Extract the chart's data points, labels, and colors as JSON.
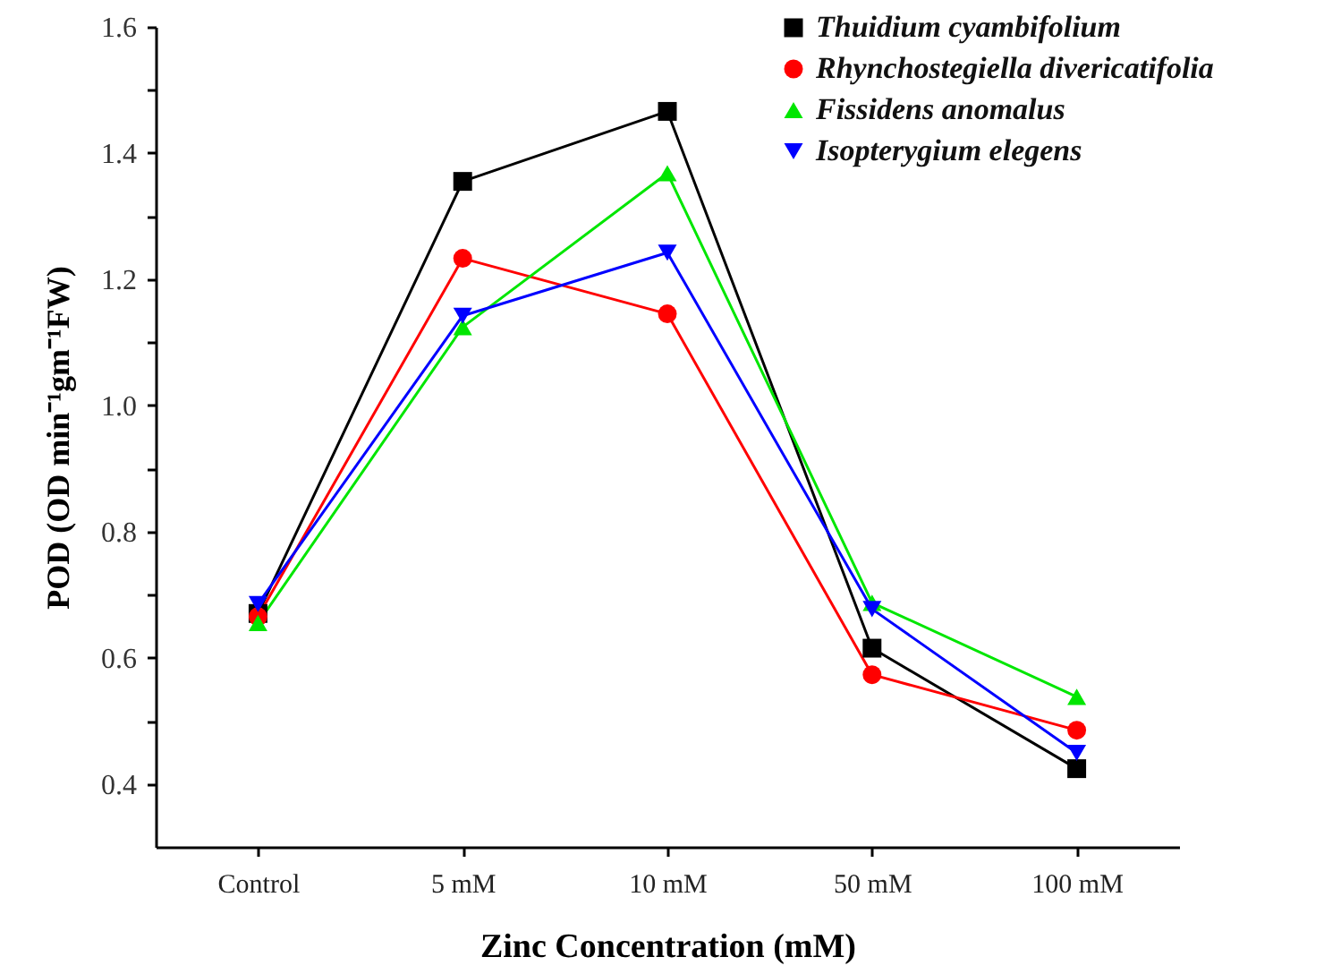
{
  "chart_data": {
    "type": "line",
    "xlabel": "Zinc Concentration (mM)",
    "ylabel": "POD (OD min⁻¹gm⁻¹FW)",
    "categories": [
      "Control",
      "5 mM",
      "10 mM",
      "50 mM",
      "100 mM"
    ],
    "series": [
      {
        "name": "Thuidium cyambifolium",
        "color": "#000000",
        "marker": "square",
        "values": [
          0.67,
          1.355,
          1.466,
          0.615,
          0.424
        ]
      },
      {
        "name": "Rhynchostegiella divericatifolia",
        "color": "#ff0000",
        "marker": "circle",
        "values": [
          0.665,
          1.233,
          1.145,
          0.573,
          0.485
        ]
      },
      {
        "name": "Fissidens anomalus",
        "color": "#00e600",
        "marker": "triangle",
        "values": [
          0.655,
          1.124,
          1.368,
          0.687,
          0.538
        ]
      },
      {
        "name": "Isopterygium elegens",
        "color": "#0000ff",
        "marker": "triangle-down",
        "values": [
          0.685,
          1.142,
          1.242,
          0.677,
          0.449
        ]
      }
    ],
    "ylim": [
      0.3,
      1.6
    ],
    "yticks": [
      0.4,
      {
        "value": 0.5,
        "label": null
      },
      0.6,
      {
        "value": 0.7,
        "label": null
      },
      0.8,
      {
        "value": 0.9,
        "label": null
      },
      {
        "value": 1,
        "label": "1.0"
      },
      {
        "value": 1.1,
        "label": null
      },
      1.2,
      {
        "value": 1.3,
        "label": null
      },
      1.4,
      {
        "value": 1.5,
        "label": null
      },
      1.6
    ],
    "grid": false,
    "legend": "top right",
    "line_style": "solid"
  }
}
